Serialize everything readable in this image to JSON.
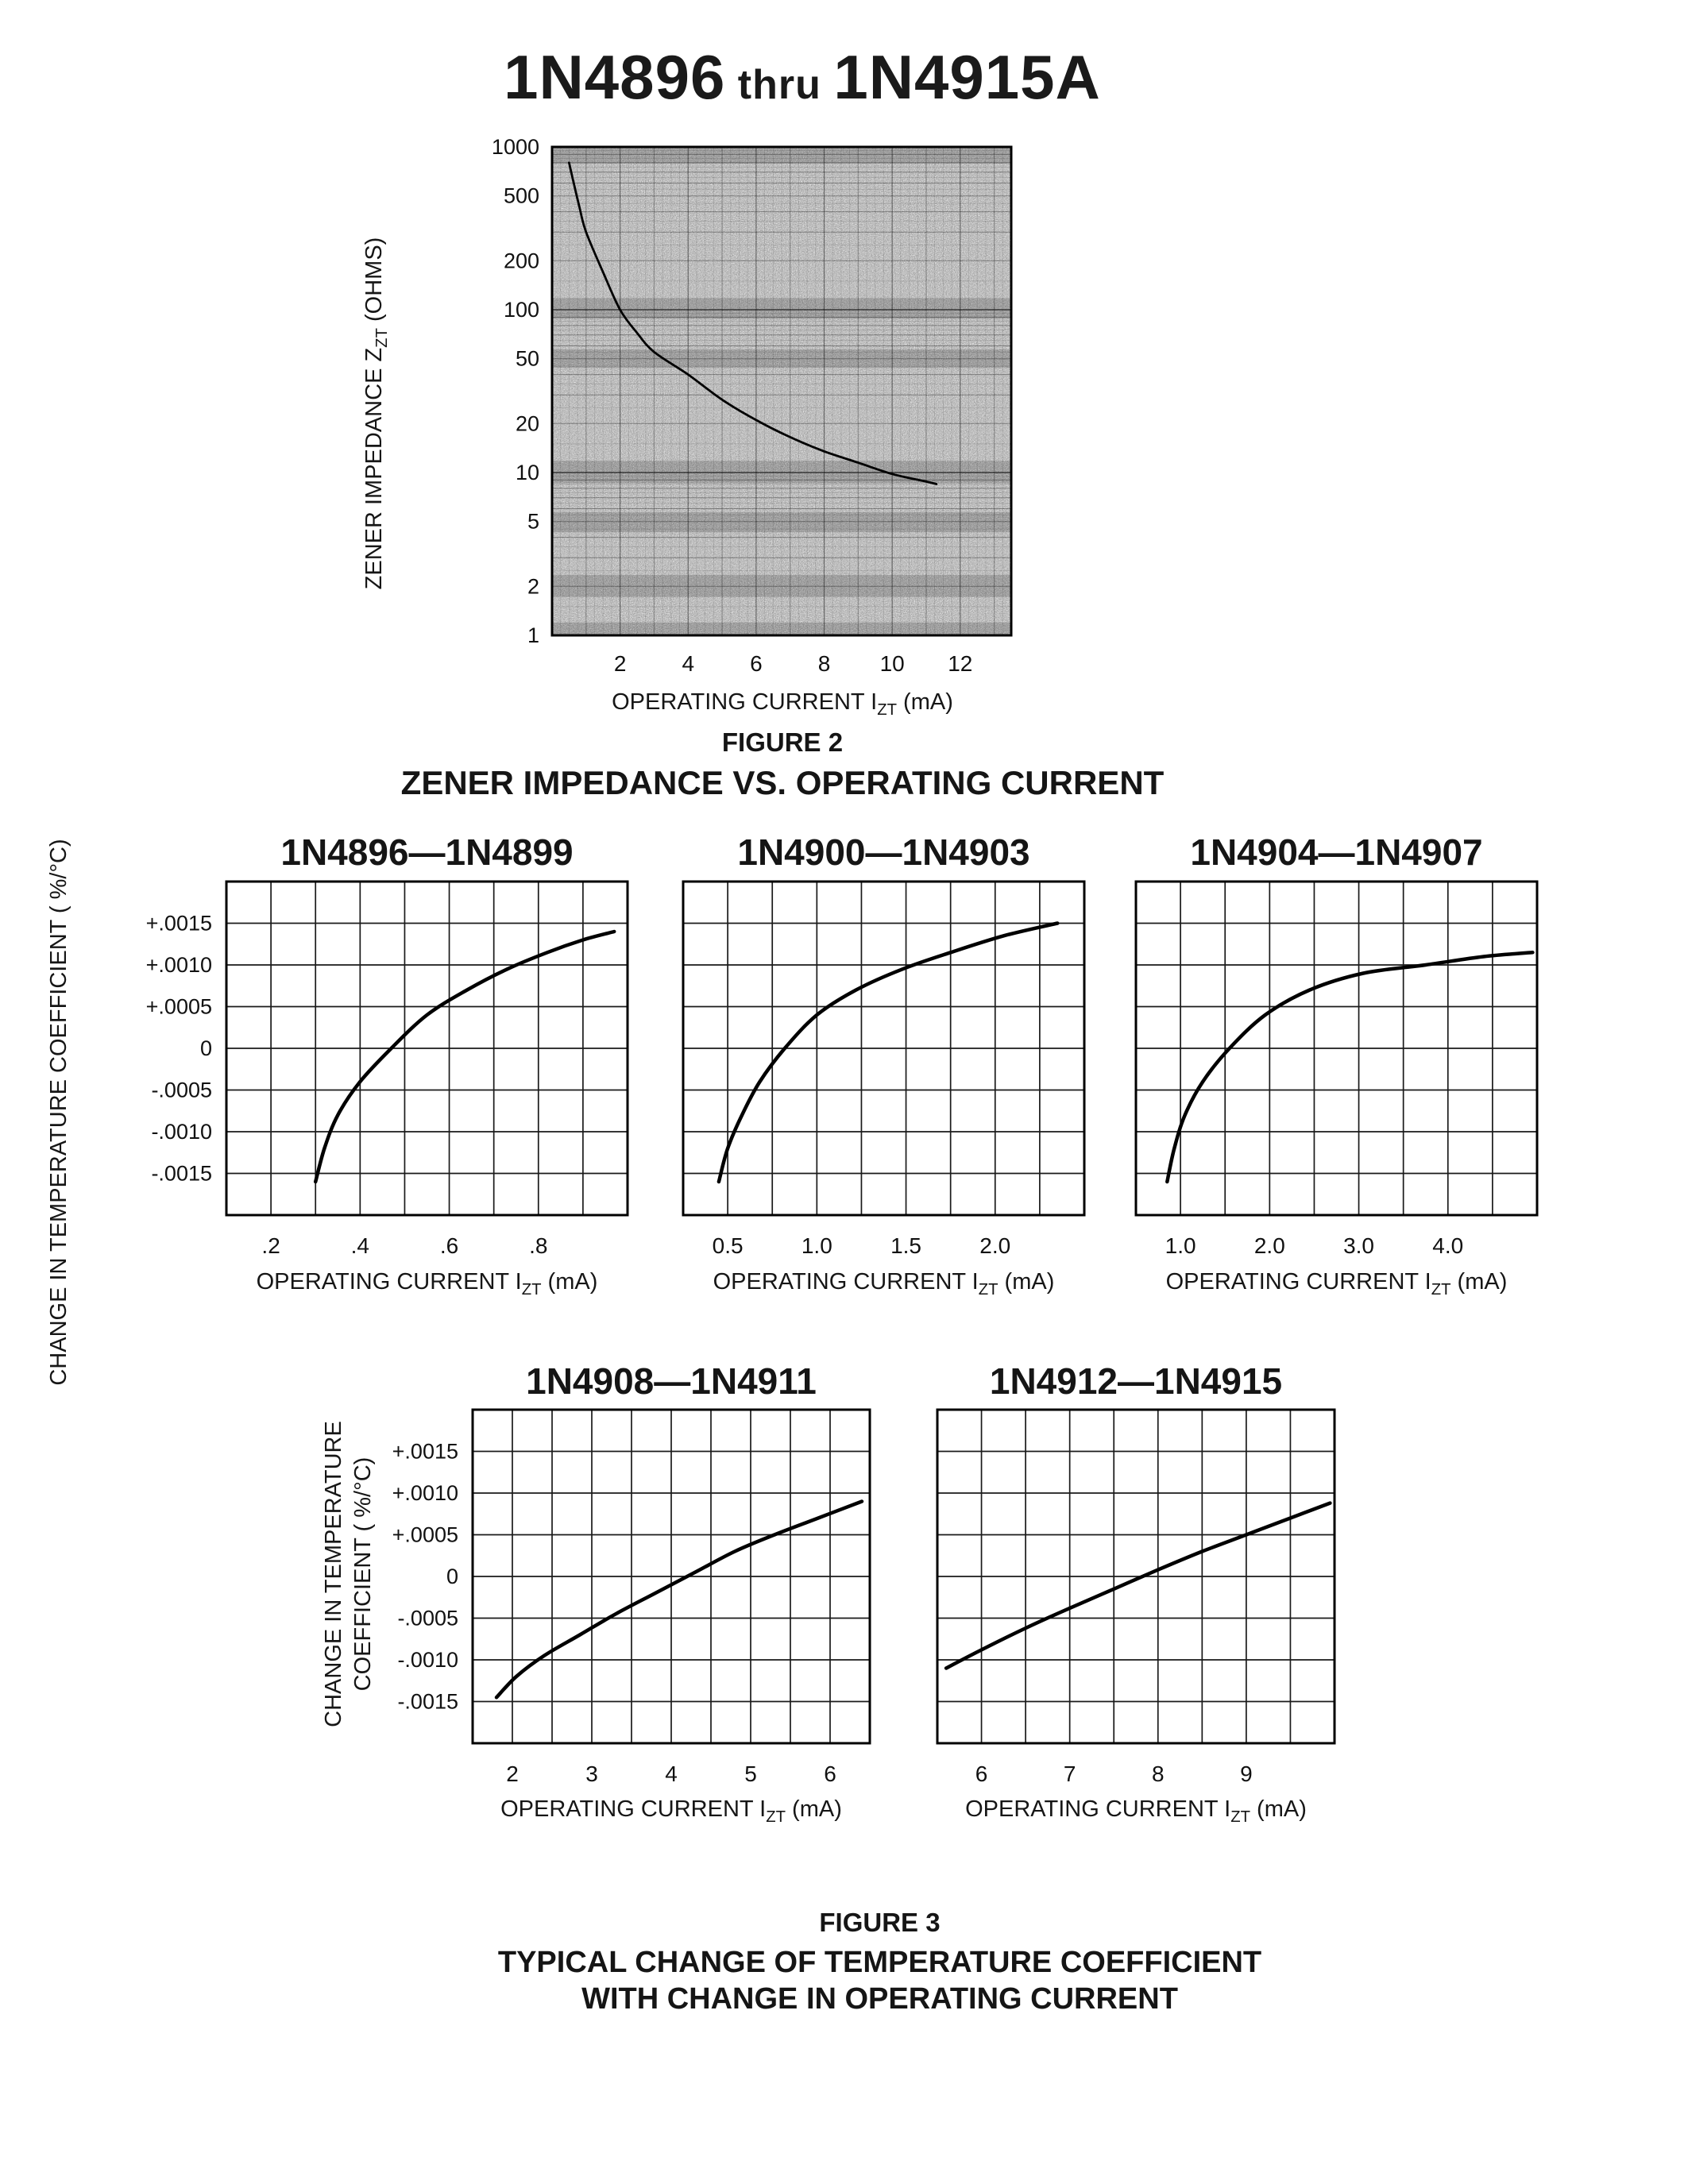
{
  "page_title": {
    "part1": "1N4896",
    "thru": "thru",
    "part2": "1N4915A"
  },
  "labels": {
    "x_axis_prefix": "OPERATING CURRENT I",
    "x_axis_sub": "ZT",
    "x_axis_suffix": " (mA)",
    "fig2_y_prefix": "ZENER IMPEDANCE Z",
    "fig2_y_sub": "ZT",
    "fig2_y_suffix": " (OHMS)",
    "fig3_y_top": "CHANGE IN TEMPERATURE COEFFICIENT ( %/°C)",
    "fig3_y_bottom_line1": "CHANGE IN TEMPERATURE",
    "fig3_y_bottom_line2": "COEFFICIENT ( %/°C)"
  },
  "figure2": {
    "caption": "FIGURE 2",
    "heading": "ZENER IMPEDANCE VS. OPERATING CURRENT"
  },
  "figure3": {
    "caption": "FIGURE 3",
    "heading_line1": "TYPICAL CHANGE OF TEMPERATURE COEFFICIENT",
    "heading_line2": "WITH CHANGE IN OPERATING CURRENT"
  },
  "chart_data": [
    {
      "id": "fig2",
      "type": "line",
      "title": "ZENER IMPEDANCE VS. OPERATING CURRENT",
      "xlabel": "OPERATING CURRENT IZT (mA)",
      "ylabel": "ZENER IMPEDANCE ZZT (OHMS)",
      "x_scale": "linear",
      "y_scale": "log",
      "xlim": [
        0,
        13.5
      ],
      "ylim": [
        1,
        1000
      ],
      "xticks": [
        {
          "v": 2,
          "label": "2"
        },
        {
          "v": 4,
          "label": "4"
        },
        {
          "v": 6,
          "label": "6"
        },
        {
          "v": 8,
          "label": "8"
        },
        {
          "v": 10,
          "label": "10"
        },
        {
          "v": 12,
          "label": "12"
        }
      ],
      "yticks": [
        {
          "v": 1000,
          "label": "1000"
        },
        {
          "v": 500,
          "label": "500"
        },
        {
          "v": 200,
          "label": "200"
        },
        {
          "v": 100,
          "label": "100"
        },
        {
          "v": 50,
          "label": "50"
        },
        {
          "v": 20,
          "label": "20"
        },
        {
          "v": 10,
          "label": "10"
        },
        {
          "v": 5,
          "label": "5"
        },
        {
          "v": 2,
          "label": "2"
        },
        {
          "v": 1,
          "label": "1"
        }
      ],
      "points": [
        [
          0.5,
          800
        ],
        [
          0.8,
          430
        ],
        [
          1.0,
          300
        ],
        [
          1.5,
          170
        ],
        [
          2.0,
          100
        ],
        [
          2.5,
          72
        ],
        [
          3.0,
          55
        ],
        [
          4.0,
          40
        ],
        [
          5.0,
          28
        ],
        [
          6.0,
          21
        ],
        [
          7.0,
          16.5
        ],
        [
          8.0,
          13.5
        ],
        [
          9.0,
          11.5
        ],
        [
          10.0,
          9.8
        ],
        [
          11.0,
          8.8
        ],
        [
          11.3,
          8.5
        ]
      ]
    },
    {
      "id": "fig3a",
      "type": "line",
      "title": "1N4896—1N4899",
      "xlabel": "OPERATING CURRENT IZT (mA)",
      "ylabel": "CHANGE IN TEMPERATURE COEFFICIENT ( %/°C)",
      "xlim": [
        0.1,
        1.0
      ],
      "xgrid_step": 0.1,
      "ylim": [
        -0.002,
        0.002
      ],
      "ygrid_step": 0.0005,
      "show_ytick_labels": true,
      "xticks": [
        {
          "v": 0.2,
          "label": ".2"
        },
        {
          "v": 0.4,
          "label": ".4"
        },
        {
          "v": 0.6,
          "label": ".6"
        },
        {
          "v": 0.8,
          "label": ".8"
        }
      ],
      "yticks": [
        {
          "v": 0.0015,
          "label": "+.0015"
        },
        {
          "v": 0.001,
          "label": "+.0010"
        },
        {
          "v": 0.0005,
          "label": "+.0005"
        },
        {
          "v": 0,
          "label": "0"
        },
        {
          "v": -0.0005,
          "label": "-.0005"
        },
        {
          "v": -0.001,
          "label": "-.0010"
        },
        {
          "v": -0.0015,
          "label": "-.0015"
        }
      ],
      "points": [
        [
          0.3,
          -0.0016
        ],
        [
          0.32,
          -0.0012
        ],
        [
          0.35,
          -0.0008
        ],
        [
          0.4,
          -0.0004
        ],
        [
          0.47,
          0
        ],
        [
          0.55,
          0.0004
        ],
        [
          0.64,
          0.0007
        ],
        [
          0.73,
          0.00095
        ],
        [
          0.82,
          0.00115
        ],
        [
          0.9,
          0.0013
        ],
        [
          0.97,
          0.0014
        ]
      ]
    },
    {
      "id": "fig3b",
      "type": "line",
      "title": "1N4900—1N4903",
      "xlabel": "OPERATING CURRENT IZT (mA)",
      "ylabel": "CHANGE IN TEMPERATURE COEFFICIENT ( %/°C)",
      "xlim": [
        0.25,
        2.5
      ],
      "xgrid_step": 0.25,
      "ylim": [
        -0.002,
        0.002
      ],
      "ygrid_step": 0.0005,
      "show_ytick_labels": false,
      "xticks": [
        {
          "v": 0.5,
          "label": "0.5"
        },
        {
          "v": 1.0,
          "label": "1.0"
        },
        {
          "v": 1.5,
          "label": "1.5"
        },
        {
          "v": 2.0,
          "label": "2.0"
        }
      ],
      "yticks": [
        {
          "v": 0.0015,
          "label": "+.0015"
        },
        {
          "v": 0.001,
          "label": "+.0010"
        },
        {
          "v": 0.0005,
          "label": "+.0005"
        },
        {
          "v": 0,
          "label": "0"
        },
        {
          "v": -0.0005,
          "label": "-.0005"
        },
        {
          "v": -0.001,
          "label": "-.0010"
        },
        {
          "v": -0.0015,
          "label": "-.0015"
        }
      ],
      "points": [
        [
          0.45,
          -0.0016
        ],
        [
          0.5,
          -0.0012
        ],
        [
          0.58,
          -0.0008
        ],
        [
          0.68,
          -0.0004
        ],
        [
          0.82,
          0
        ],
        [
          1.0,
          0.0004
        ],
        [
          1.22,
          0.0007
        ],
        [
          1.48,
          0.00095
        ],
        [
          1.75,
          0.00115
        ],
        [
          2.05,
          0.00135
        ],
        [
          2.35,
          0.0015
        ]
      ]
    },
    {
      "id": "fig3c",
      "type": "line",
      "title": "1N4904—1N4907",
      "xlabel": "OPERATING CURRENT IZT (mA)",
      "ylabel": "CHANGE IN TEMPERATURE COEFFICIENT ( %/°C)",
      "xlim": [
        0.5,
        5.0
      ],
      "xgrid_step": 0.5,
      "ylim": [
        -0.002,
        0.002
      ],
      "ygrid_step": 0.0005,
      "show_ytick_labels": false,
      "xticks": [
        {
          "v": 1.0,
          "label": "1.0"
        },
        {
          "v": 2.0,
          "label": "2.0"
        },
        {
          "v": 3.0,
          "label": "3.0"
        },
        {
          "v": 4.0,
          "label": "4.0"
        }
      ],
      "yticks": [
        {
          "v": 0.0015,
          "label": "+.0015"
        },
        {
          "v": 0.001,
          "label": "+.0010"
        },
        {
          "v": 0.0005,
          "label": "+.0005"
        },
        {
          "v": 0,
          "label": "0"
        },
        {
          "v": -0.0005,
          "label": "-.0005"
        },
        {
          "v": -0.001,
          "label": "-.0010"
        },
        {
          "v": -0.0015,
          "label": "-.0015"
        }
      ],
      "points": [
        [
          0.85,
          -0.0016
        ],
        [
          0.93,
          -0.0012
        ],
        [
          1.05,
          -0.0008
        ],
        [
          1.25,
          -0.0004
        ],
        [
          1.55,
          0
        ],
        [
          1.95,
          0.0004
        ],
        [
          2.45,
          0.0007
        ],
        [
          3.05,
          0.0009
        ],
        [
          3.75,
          0.001
        ],
        [
          4.4,
          0.0011
        ],
        [
          4.95,
          0.00115
        ]
      ]
    },
    {
      "id": "fig3d",
      "type": "line",
      "title": "1N4908—1N4911",
      "xlabel": "OPERATING CURRENT IZT (mA)",
      "ylabel": "CHANGE IN TEMPERATURE COEFFICIENT ( %/°C)",
      "xlim": [
        1.5,
        6.5
      ],
      "xgrid_step": 0.5,
      "ylim": [
        -0.002,
        0.002
      ],
      "ygrid_step": 0.0005,
      "show_ytick_labels": true,
      "xticks": [
        {
          "v": 2,
          "label": "2"
        },
        {
          "v": 3,
          "label": "3"
        },
        {
          "v": 4,
          "label": "4"
        },
        {
          "v": 5,
          "label": "5"
        },
        {
          "v": 6,
          "label": "6"
        }
      ],
      "yticks": [
        {
          "v": 0.0015,
          "label": "+.0015"
        },
        {
          "v": 0.001,
          "label": "+.0010"
        },
        {
          "v": 0.0005,
          "label": "+.0005"
        },
        {
          "v": 0,
          "label": "0"
        },
        {
          "v": -0.0005,
          "label": "-.0005"
        },
        {
          "v": -0.001,
          "label": "-.0010"
        },
        {
          "v": -0.0015,
          "label": "-.0015"
        }
      ],
      "points": [
        [
          1.8,
          -0.00145
        ],
        [
          2.05,
          -0.0012
        ],
        [
          2.4,
          -0.00095
        ],
        [
          2.85,
          -0.0007
        ],
        [
          3.3,
          -0.00045
        ],
        [
          3.8,
          -0.0002
        ],
        [
          4.3,
          5e-05
        ],
        [
          4.8,
          0.0003
        ],
        [
          5.3,
          0.0005
        ],
        [
          5.85,
          0.0007
        ],
        [
          6.4,
          0.0009
        ]
      ]
    },
    {
      "id": "fig3e",
      "type": "line",
      "title": "1N4912—1N4915",
      "xlabel": "OPERATING CURRENT IZT (mA)",
      "ylabel": "CHANGE IN TEMPERATURE COEFFICIENT ( %/°C)",
      "xlim": [
        5.5,
        10.0
      ],
      "xgrid_step": 0.5,
      "ylim": [
        -0.002,
        0.002
      ],
      "ygrid_step": 0.0005,
      "show_ytick_labels": false,
      "xticks": [
        {
          "v": 6,
          "label": "6"
        },
        {
          "v": 7,
          "label": "7"
        },
        {
          "v": 8,
          "label": "8"
        },
        {
          "v": 9,
          "label": "9"
        }
      ],
      "yticks": [
        {
          "v": 0.0015,
          "label": "+.0015"
        },
        {
          "v": 0.001,
          "label": "+.0010"
        },
        {
          "v": 0.0005,
          "label": "+.0005"
        },
        {
          "v": 0,
          "label": "0"
        },
        {
          "v": -0.0005,
          "label": "-.0005"
        },
        {
          "v": -0.001,
          "label": "-.0010"
        },
        {
          "v": -0.0015,
          "label": "-.0015"
        }
      ],
      "points": [
        [
          5.6,
          -0.0011
        ],
        [
          6.0,
          -0.00088
        ],
        [
          6.5,
          -0.00062
        ],
        [
          7.0,
          -0.00038
        ],
        [
          7.5,
          -0.00015
        ],
        [
          8.0,
          8e-05
        ],
        [
          8.5,
          0.0003
        ],
        [
          9.0,
          0.0005
        ],
        [
          9.5,
          0.0007
        ],
        [
          9.95,
          0.00088
        ]
      ]
    }
  ]
}
